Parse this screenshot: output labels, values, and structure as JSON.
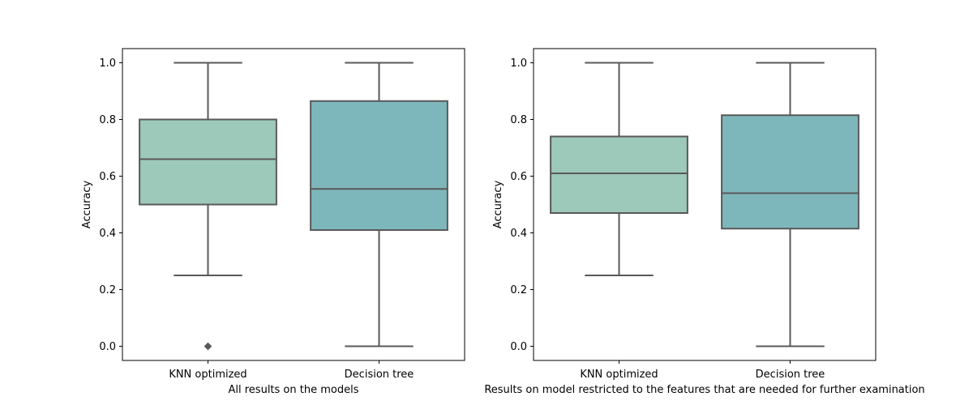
{
  "chart_data": [
    {
      "type": "box",
      "title": "",
      "xlabel": "All results on the models",
      "ylabel": "Accuracy",
      "ylim": [
        -0.05,
        1.05
      ],
      "yticks": [
        0.0,
        0.2,
        0.4,
        0.6,
        0.8,
        1.0
      ],
      "ytick_labels": [
        "0.0",
        "0.2",
        "0.4",
        "0.6",
        "0.8",
        "1.0"
      ],
      "grid": false,
      "categories": [
        "KNN optimized",
        "Decision tree"
      ],
      "boxes": [
        {
          "category": "KNN optimized",
          "whisker_low": 0.25,
          "q1": 0.5,
          "median": 0.66,
          "q3": 0.8,
          "whisker_high": 1.0,
          "outliers": [
            0.0,
            0.0
          ],
          "color": "#9dc9bb"
        },
        {
          "category": "Decision tree",
          "whisker_low": 0.0,
          "q1": 0.41,
          "median": 0.555,
          "q3": 0.865,
          "whisker_high": 1.0,
          "outliers": [],
          "color": "#7eb7bb"
        }
      ]
    },
    {
      "type": "box",
      "title": "",
      "xlabel": "Results on model restricted to the features that are needed for further examination",
      "ylabel": "Accuracy",
      "ylim": [
        -0.05,
        1.05
      ],
      "yticks": [
        0.0,
        0.2,
        0.4,
        0.6,
        0.8,
        1.0
      ],
      "ytick_labels": [
        "0.0",
        "0.2",
        "0.4",
        "0.6",
        "0.8",
        "1.0"
      ],
      "grid": false,
      "categories": [
        "KNN optimized",
        "Decision tree"
      ],
      "boxes": [
        {
          "category": "KNN optimized",
          "whisker_low": 0.25,
          "q1": 0.47,
          "median": 0.61,
          "q3": 0.74,
          "whisker_high": 1.0,
          "outliers": [],
          "color": "#9dc9bb"
        },
        {
          "category": "Decision tree",
          "whisker_low": 0.0,
          "q1": 0.415,
          "median": 0.54,
          "q3": 0.815,
          "whisker_high": 1.0,
          "outliers": [],
          "color": "#7eb7bb"
        }
      ]
    }
  ],
  "style": {
    "line_color": "#595959",
    "axis_color": "#000000"
  }
}
